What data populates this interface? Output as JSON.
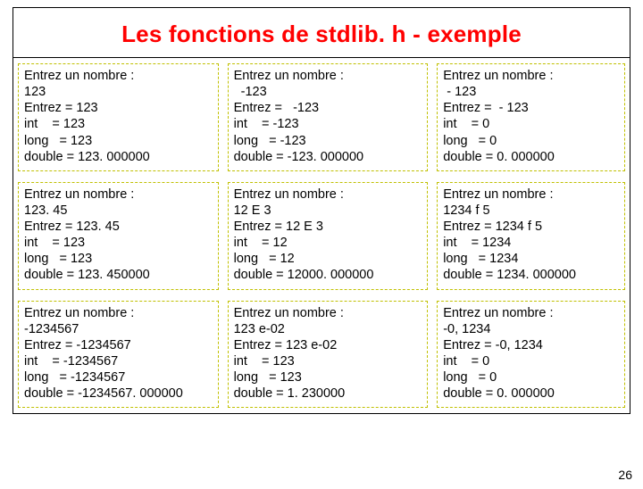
{
  "title": "Les fonctions de stdlib. h - exemple",
  "page_number": "26",
  "layout": {
    "rows": 3,
    "cols": 3,
    "col_widths_pct": [
      34,
      34,
      32
    ]
  },
  "style": {
    "title_color": "#ff0000",
    "title_fontsize": 26,
    "cell_border_color": "#c0c000",
    "cell_border_style": "dashed",
    "text_color": "#000000",
    "background_color": "#ffffff",
    "body_fontsize": 14.5,
    "label_col_width_ch": 7,
    "prefix": "= "
  },
  "cells": [
    [
      {
        "prompt": "Entrez un nombre :",
        "input": "123",
        "lines": [
          {
            "label": "Entrez",
            "value": "123"
          },
          {
            "label": "int",
            "value": "123"
          },
          {
            "label": "long",
            "value": "123"
          },
          {
            "label": "double",
            "value": "123. 000000"
          }
        ]
      },
      {
        "prompt": "Entrez un nombre :",
        "input": "  -123",
        "lines": [
          {
            "label": "Entrez",
            "value": "  -123"
          },
          {
            "label": "int",
            "value": "-123"
          },
          {
            "label": "long",
            "value": "-123"
          },
          {
            "label": "double",
            "value": "-123. 000000"
          }
        ]
      },
      {
        "prompt": "Entrez un nombre :",
        "input": " - 123",
        "lines": [
          {
            "label": "Entrez",
            "value": " - 123"
          },
          {
            "label": "int",
            "value": "0"
          },
          {
            "label": "long",
            "value": "0"
          },
          {
            "label": "double",
            "value": "0. 000000"
          }
        ]
      }
    ],
    [
      {
        "prompt": "Entrez un nombre :",
        "input": "123. 45",
        "lines": [
          {
            "label": "Entrez",
            "value": "123. 45"
          },
          {
            "label": "int",
            "value": "123"
          },
          {
            "label": "long",
            "value": "123"
          },
          {
            "label": "double",
            "value": "123. 450000"
          }
        ]
      },
      {
        "prompt": "Entrez un nombre :",
        "input": "12 E 3",
        "lines": [
          {
            "label": "Entrez",
            "value": "12 E 3"
          },
          {
            "label": "int",
            "value": "12"
          },
          {
            "label": "long",
            "value": "12"
          },
          {
            "label": "double",
            "value": "12000. 000000"
          }
        ]
      },
      {
        "prompt": "Entrez un nombre :",
        "input": "1234 f 5",
        "lines": [
          {
            "label": "Entrez",
            "value": "1234 f 5"
          },
          {
            "label": "int",
            "value": "1234"
          },
          {
            "label": "long",
            "value": "1234"
          },
          {
            "label": "double",
            "value": "1234. 000000"
          }
        ]
      }
    ],
    [
      {
        "prompt": "Entrez un nombre :",
        "input": "-1234567",
        "lines": [
          {
            "label": "Entrez",
            "value": "-1234567"
          },
          {
            "label": "int",
            "value": "-1234567"
          },
          {
            "label": "long",
            "value": "-1234567"
          },
          {
            "label": "double",
            "value": "-1234567. 000000"
          }
        ]
      },
      {
        "prompt": "Entrez un nombre :",
        "input": "123 e-02",
        "lines": [
          {
            "label": "Entrez",
            "value": "123 e-02"
          },
          {
            "label": "int",
            "value": "123"
          },
          {
            "label": "long",
            "value": "123"
          },
          {
            "label": "double",
            "value": "1. 230000"
          }
        ]
      },
      {
        "prompt": "Entrez un nombre :",
        "input": "-0, 1234",
        "lines": [
          {
            "label": "Entrez",
            "value": "-0, 1234"
          },
          {
            "label": "int",
            "value": "0"
          },
          {
            "label": "long",
            "value": "0"
          },
          {
            "label": "double",
            "value": "0. 000000"
          }
        ]
      }
    ]
  ]
}
